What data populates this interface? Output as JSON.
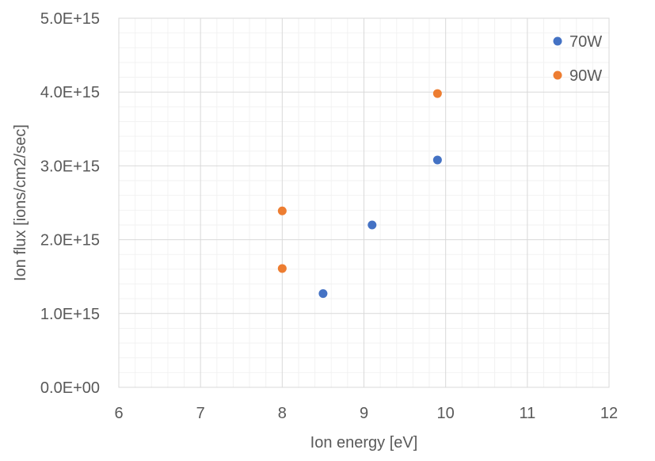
{
  "chart_data": {
    "type": "scatter",
    "xlabel": "Ion energy [eV]",
    "ylabel": "Ion flux [ions/cm2/sec]",
    "xlim": [
      6,
      12
    ],
    "ylim": [
      0,
      5000000000000000.0
    ],
    "x_ticks": [
      "6",
      "7",
      "8",
      "9",
      "10",
      "11",
      "12"
    ],
    "y_ticks": [
      "0.0E+00",
      "1.0E+15",
      "2.0E+15",
      "3.0E+15",
      "4.0E+15",
      "5.0E+15"
    ],
    "x_tick_values": [
      6,
      7,
      8,
      9,
      10,
      11,
      12
    ],
    "y_tick_values": [
      0,
      1000000000000000.0,
      2000000000000000.0,
      3000000000000000.0,
      4000000000000000.0,
      5000000000000000.0
    ],
    "x_minor_step": 0.2,
    "y_minor_step": 200000000000000.0,
    "grid": true,
    "legend_position": "top-right",
    "series": [
      {
        "name": "70W",
        "color": "#4472C4",
        "x": [
          8.5,
          9.1,
          9.9
        ],
        "y": [
          1270000000000000.0,
          2200000000000000.0,
          3080000000000000.0
        ]
      },
      {
        "name": "90W",
        "color": "#ED7D31",
        "x": [
          8.0,
          8.0,
          9.9
        ],
        "y": [
          1610000000000000.0,
          2390000000000000.0,
          3980000000000000.0
        ]
      }
    ]
  }
}
